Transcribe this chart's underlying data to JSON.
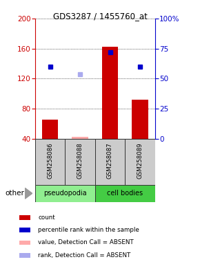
{
  "title": "GDS3287 / 1455760_at",
  "samples": [
    "GSM258086",
    "GSM258088",
    "GSM258087",
    "GSM258089"
  ],
  "groups": [
    "pseudopodia",
    "pseudopodia",
    "cell bodies",
    "cell bodies"
  ],
  "bar_values": [
    65,
    42,
    162,
    92
  ],
  "absent_bar_values": [
    null,
    42,
    null,
    null
  ],
  "blue_dot_values": [
    136,
    null,
    155,
    136
  ],
  "absent_dot_values": [
    null,
    126,
    null,
    null
  ],
  "ylim_left": [
    40,
    200
  ],
  "ylim_right": [
    0,
    100
  ],
  "yticks_left": [
    40,
    80,
    120,
    160,
    200
  ],
  "yticks_right": [
    0,
    25,
    50,
    75,
    100
  ],
  "group_colors": {
    "pseudopodia": "#90ee90",
    "cell bodies": "#44cc44"
  },
  "left_axis_color": "#cc0000",
  "right_axis_color": "#0000cc",
  "bar_color": "#cc0000",
  "absent_bar_color": "#ffaaaa",
  "blue_dot_color": "#0000cc",
  "absent_dot_color": "#aaaaee",
  "legend_items": [
    {
      "label": "count",
      "color": "#cc0000"
    },
    {
      "label": "percentile rank within the sample",
      "color": "#0000cc"
    },
    {
      "label": "value, Detection Call = ABSENT",
      "color": "#ffaaaa"
    },
    {
      "label": "rank, Detection Call = ABSENT",
      "color": "#aaaaee"
    }
  ],
  "other_label": "other",
  "sample_box_color": "#cccccc",
  "sample_box_edge": "#333333"
}
